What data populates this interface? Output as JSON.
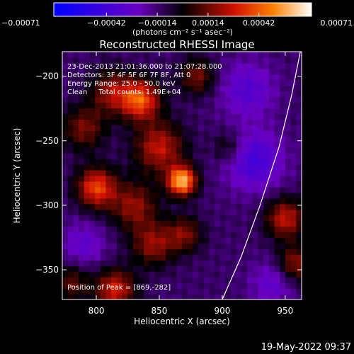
{
  "chart_data": {
    "type": "heatmap",
    "title": "Reconstructed RHESSI Image",
    "xlabel": "Heliocentric X (arcsec)",
    "ylabel": "Heliocentric Y (arcsec)",
    "xlim": [
      773,
      963
    ],
    "ylim": [
      -373,
      -181
    ],
    "x_ticks": [
      800,
      850,
      900,
      950
    ],
    "x_tick_labels": [
      "800",
      "850",
      "900",
      "950"
    ],
    "y_ticks": [
      -200,
      -250,
      -300,
      -350
    ],
    "y_tick_labels": [
      "−200",
      "−250",
      "−300",
      "−350"
    ],
    "colorbar": {
      "range": [
        -0.00071,
        0.00071
      ],
      "ticks": [
        -0.00071,
        -0.00042,
        -0.00014,
        0.00014,
        0.00042,
        0.00071
      ],
      "tick_labels": [
        "−0.00071",
        "−0.00042",
        "−0.00014",
        "0.00014",
        "0.00042",
        "0.00071"
      ],
      "unit_label": "(photons cm⁻² s⁻¹ asec⁻²)"
    },
    "annotations": [
      "23-Dec-2013 21:01:36.000 to 21:07:28.000",
      "Detectors: 3F 4F 5F 6F 7F 8F, Att 0",
      "Energy Range: 25.0 - 50.0 keV",
      "Clean     Total counts: 1.49E+04"
    ],
    "peak_label": "Position of Peak = [869,-282]",
    "peak": [
      869,
      -282
    ],
    "limb_curve": [
      [
        900,
        -373
      ],
      [
        915,
        -340
      ],
      [
        930,
        -300
      ],
      [
        945,
        -255
      ],
      [
        955,
        -215
      ],
      [
        962,
        -181
      ]
    ],
    "blobs": [
      {
        "x": 868,
        "y": -281,
        "amp": 1.0,
        "s": 8
      },
      {
        "x": 835,
        "y": -218,
        "amp": 0.75,
        "s": 11
      },
      {
        "x": 800,
        "y": -286,
        "amp": 0.7,
        "s": 11
      },
      {
        "x": 850,
        "y": -255,
        "amp": 0.55,
        "s": 14
      },
      {
        "x": 812,
        "y": -212,
        "amp": 0.45,
        "s": 12
      },
      {
        "x": 790,
        "y": -240,
        "amp": 0.4,
        "s": 12
      },
      {
        "x": 830,
        "y": -300,
        "amp": 0.45,
        "s": 13
      },
      {
        "x": 845,
        "y": -330,
        "amp": 0.45,
        "s": 12
      },
      {
        "x": 815,
        "y": -365,
        "amp": 0.6,
        "s": 11
      },
      {
        "x": 870,
        "y": -322,
        "amp": 0.4,
        "s": 10
      },
      {
        "x": 880,
        "y": -200,
        "amp": 0.4,
        "s": 10
      },
      {
        "x": 905,
        "y": -255,
        "amp": 0.25,
        "s": 9
      },
      {
        "x": 950,
        "y": -310,
        "amp": 0.55,
        "s": 11
      },
      {
        "x": 958,
        "y": -345,
        "amp": 0.45,
        "s": 10
      },
      {
        "x": 780,
        "y": -360,
        "amp": 0.35,
        "s": 10
      },
      {
        "x": 925,
        "y": -265,
        "amp": -0.4,
        "s": 16
      },
      {
        "x": 920,
        "y": -210,
        "amp": -0.3,
        "s": 15
      },
      {
        "x": 790,
        "y": -330,
        "amp": -0.25,
        "s": 12
      },
      {
        "x": 940,
        "y": -360,
        "amp": -0.25,
        "s": 12
      }
    ]
  },
  "footer": {
    "date": "19-May-2022 09:37"
  }
}
